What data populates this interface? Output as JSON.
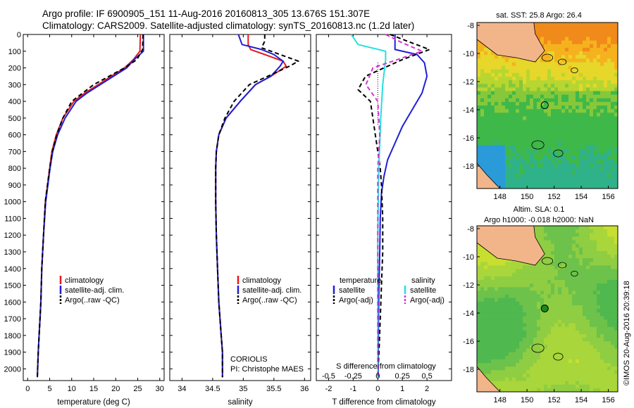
{
  "header": {
    "title_line1": "Argo profile: IF 6900905_151 11-Aug-2016 20160813_305 13.676S 151.307E",
    "title_line2": "Climatology: CARS2009. Satellite-adjusted climatology: synTS_20160813.nc (1.2d later)"
  },
  "colors": {
    "climatology": "#e41a1c",
    "satellite": "#1f1fd6",
    "argo": "#000000",
    "salinity_satellite": "#22e0e0",
    "salinity_argo": "#d633d6",
    "land": "#f2b58a"
  },
  "chart_data": [
    {
      "type": "line",
      "name": "temperature-profile",
      "xlabel": "temperature (deg C)",
      "ylabel": "",
      "xlim": [
        -1,
        31
      ],
      "ylim": [
        2070,
        0
      ],
      "xticks": [
        "0",
        "5",
        "10",
        "15",
        "20",
        "25",
        "30"
      ],
      "xtick_values": [
        0,
        5,
        10,
        15,
        20,
        25,
        30
      ],
      "yticks": [
        "0",
        "100",
        "200",
        "300",
        "400",
        "500",
        "600",
        "700",
        "800",
        "900",
        "1000",
        "1100",
        "1200",
        "1300",
        "1400",
        "1500",
        "1600",
        "1700",
        "1800",
        "1900",
        "2000"
      ],
      "ytick_values": [
        0,
        100,
        200,
        300,
        400,
        500,
        600,
        700,
        800,
        900,
        1000,
        1100,
        1200,
        1300,
        1400,
        1500,
        1600,
        1700,
        1800,
        1900,
        2000
      ],
      "legend": [
        "climatology",
        "satellite-adj. clim.",
        "Argo(..raw -QC)"
      ],
      "series": [
        {
          "name": "climatology",
          "x": [
            25.6,
            25.5,
            24.0,
            22.0,
            19.0,
            16.0,
            13.0,
            10.5,
            8.0,
            6.5,
            5.5,
            5.0,
            4.5,
            4.0,
            3.6,
            3.2,
            3.0,
            2.8,
            2.6,
            2.4,
            2.2
          ],
          "y": [
            0,
            100,
            150,
            200,
            250,
            300,
            350,
            400,
            500,
            600,
            700,
            800,
            900,
            1000,
            1200,
            1400,
            1600,
            1700,
            1800,
            1900,
            2050
          ]
        },
        {
          "name": "satellite-adj. clim.",
          "x": [
            26.3,
            26.3,
            24.2,
            22.5,
            19.5,
            16.5,
            13.5,
            11.0,
            8.5,
            6.8,
            5.7,
            5.1,
            4.6,
            4.1,
            3.6,
            3.2,
            3.0,
            2.8,
            2.6,
            2.4,
            2.2
          ],
          "y": [
            0,
            100,
            150,
            200,
            250,
            300,
            350,
            400,
            500,
            600,
            700,
            800,
            900,
            1000,
            1200,
            1400,
            1600,
            1700,
            1800,
            1900,
            2050
          ]
        },
        {
          "name": "Argo(..raw -QC)",
          "x": [
            26.2,
            26.1,
            24.8,
            22.0,
            18.5,
            15.0,
            12.5,
            10.0,
            8.0,
            6.6,
            5.6,
            5.0,
            4.5,
            4.0,
            3.6,
            3.2,
            3.0,
            2.8,
            2.6,
            2.4,
            2.2
          ],
          "y": [
            0,
            90,
            150,
            200,
            250,
            300,
            350,
            400,
            500,
            600,
            700,
            800,
            900,
            1000,
            1200,
            1400,
            1600,
            1700,
            1800,
            1900,
            2050
          ]
        }
      ]
    },
    {
      "type": "line",
      "name": "salinity-profile",
      "xlabel": "salinity",
      "xlim": [
        33.8,
        36.1
      ],
      "ylim": [
        2070,
        0
      ],
      "xticks": [
        "34",
        "34.5",
        "35",
        "35.5",
        "36"
      ],
      "xtick_values": [
        34,
        34.5,
        35,
        35.5,
        36
      ],
      "legend": [
        "climatology",
        "satellite-adj. clim.",
        "Argo(..raw -QC)"
      ],
      "annotation": [
        "CORIOLIS",
        "PI: Christophe MAES"
      ],
      "series": [
        {
          "name": "climatology",
          "x": [
            35.08,
            35.08,
            35.12,
            35.35,
            35.65,
            35.7,
            35.45,
            35.2,
            34.95,
            34.72,
            34.6,
            34.56,
            34.55,
            34.55,
            34.56,
            34.58,
            34.6,
            34.62,
            34.64,
            34.66,
            34.66
          ],
          "y": [
            0,
            60,
            90,
            120,
            160,
            190,
            250,
            300,
            400,
            500,
            600,
            700,
            800,
            1000,
            1200,
            1400,
            1600,
            1700,
            1800,
            1900,
            2050
          ]
        },
        {
          "name": "satellite-adj. clim.",
          "x": [
            34.92,
            34.98,
            35.3,
            35.5,
            35.65,
            35.6,
            35.45,
            35.2,
            34.95,
            34.72,
            34.6,
            34.56,
            34.55,
            34.55,
            34.56,
            34.58,
            34.6,
            34.62,
            34.64,
            34.66,
            34.66
          ],
          "y": [
            0,
            60,
            90,
            120,
            160,
            190,
            250,
            300,
            400,
            500,
            600,
            700,
            800,
            1000,
            1200,
            1400,
            1600,
            1700,
            1800,
            1900,
            2050
          ]
        },
        {
          "name": "Argo(..raw -QC)",
          "x": [
            35.35,
            35.35,
            35.3,
            35.6,
            35.9,
            35.75,
            35.4,
            35.1,
            34.85,
            34.7,
            34.6,
            34.56,
            34.55,
            34.55,
            34.56,
            34.58,
            34.6,
            34.62,
            34.64,
            34.66,
            34.66
          ],
          "y": [
            0,
            40,
            80,
            120,
            160,
            190,
            250,
            300,
            400,
            500,
            600,
            700,
            800,
            1000,
            1200,
            1400,
            1600,
            1700,
            1800,
            1900,
            2050
          ]
        }
      ]
    },
    {
      "type": "line",
      "name": "difference-profile",
      "xlabel": "T difference from climatology",
      "xlabel_top": "S difference from climatology",
      "xlim": [
        -2.5,
        3.0
      ],
      "ylim": [
        2070,
        0
      ],
      "xticks": [
        "-2",
        "-1",
        "0",
        "1",
        "2"
      ],
      "xtick_values": [
        -2,
        -1,
        0,
        1,
        2
      ],
      "sticks": [
        "-0.5",
        "-0.25",
        "0",
        "0.25",
        "0.5"
      ],
      "stick_values": [
        -0.5,
        -0.25,
        0,
        0.25,
        0.5
      ],
      "legend_temperature_title": "temperature",
      "legend_salinity_title": "salinity",
      "legend_temperature": [
        "satellite",
        "Argo(-adj)"
      ],
      "legend_salinity": [
        "satellite",
        "Argo(-adj)"
      ],
      "series": [
        {
          "name": "T satellite",
          "x": [
            0.7,
            0.7,
            1.6,
            1.9,
            2.0,
            1.8,
            1.4,
            1.0,
            0.7,
            0.4,
            0.25,
            0.15,
            0.1,
            0.08,
            0.05,
            0.03,
            0.02,
            0.02
          ],
          "y": [
            0,
            90,
            120,
            170,
            250,
            350,
            450,
            550,
            650,
            750,
            850,
            950,
            1100,
            1300,
            1500,
            1700,
            1900,
            2050
          ]
        },
        {
          "name": "T Argo(-adj)",
          "x": [
            0.5,
            1.2,
            2.1,
            1.0,
            -0.5,
            -0.8,
            -0.3,
            -0.2,
            -0.1,
            0.0,
            0.1,
            0.15,
            0.2,
            0.2,
            0.15,
            0.1,
            0.05,
            0.0
          ],
          "y": [
            0,
            40,
            90,
            150,
            250,
            330,
            400,
            500,
            600,
            700,
            800,
            900,
            1100,
            1300,
            1500,
            1700,
            1900,
            2050
          ]
        },
        {
          "name": "S satellite",
          "x": [
            -0.27,
            -0.2,
            0.08,
            0.08,
            0.05,
            0.03,
            0.01,
            0.0,
            0.0,
            0.0
          ],
          "y": [
            0,
            60,
            100,
            150,
            300,
            500,
            800,
            1200,
            1600,
            2050
          ]
        },
        {
          "name": "S Argo(-adj)",
          "x": [
            0.08,
            0.25,
            0.45,
            0.2,
            -0.05,
            -0.12,
            0.0,
            0.02,
            0.0,
            0.0
          ],
          "y": [
            0,
            50,
            100,
            150,
            200,
            300,
            400,
            600,
            800,
            2050
          ]
        }
      ]
    },
    {
      "type": "heatmap",
      "name": "sst-map",
      "title": "sat. SST: 25.8 Argo: 26.4",
      "xticks": [
        "148",
        "150",
        "152",
        "154",
        "156"
      ],
      "xtick_values": [
        148,
        150,
        152,
        154,
        156
      ],
      "yticks": [
        "-8",
        "-10",
        "-12",
        "-14",
        "-16",
        "-18"
      ],
      "ytick_values": [
        -8,
        -10,
        -12,
        -14,
        -16,
        -18
      ],
      "lonlim": [
        146.3,
        156.7
      ],
      "latlim": [
        -19.6,
        -7.8
      ],
      "argo_position": [
        151.307,
        -13.676
      ]
    },
    {
      "type": "heatmap",
      "name": "sla-map",
      "title_line1": "Altim. SLA: 0.1",
      "title_line2": "Argo h1000: -0.018 h2000: NaN",
      "xticks": [
        "148",
        "150",
        "152",
        "154",
        "156"
      ],
      "xtick_values": [
        148,
        150,
        152,
        154,
        156
      ],
      "yticks": [
        "-8",
        "-10",
        "-12",
        "-14",
        "-16",
        "-18"
      ],
      "ytick_values": [
        -8,
        -10,
        -12,
        -14,
        -16,
        -18
      ],
      "lonlim": [
        146.3,
        156.7
      ],
      "latlim": [
        -19.6,
        -7.8
      ],
      "argo_position": [
        151.307,
        -13.676
      ]
    }
  ],
  "footer": {
    "credit": "©IMOS 20-Aug-2016 20:39:18"
  }
}
